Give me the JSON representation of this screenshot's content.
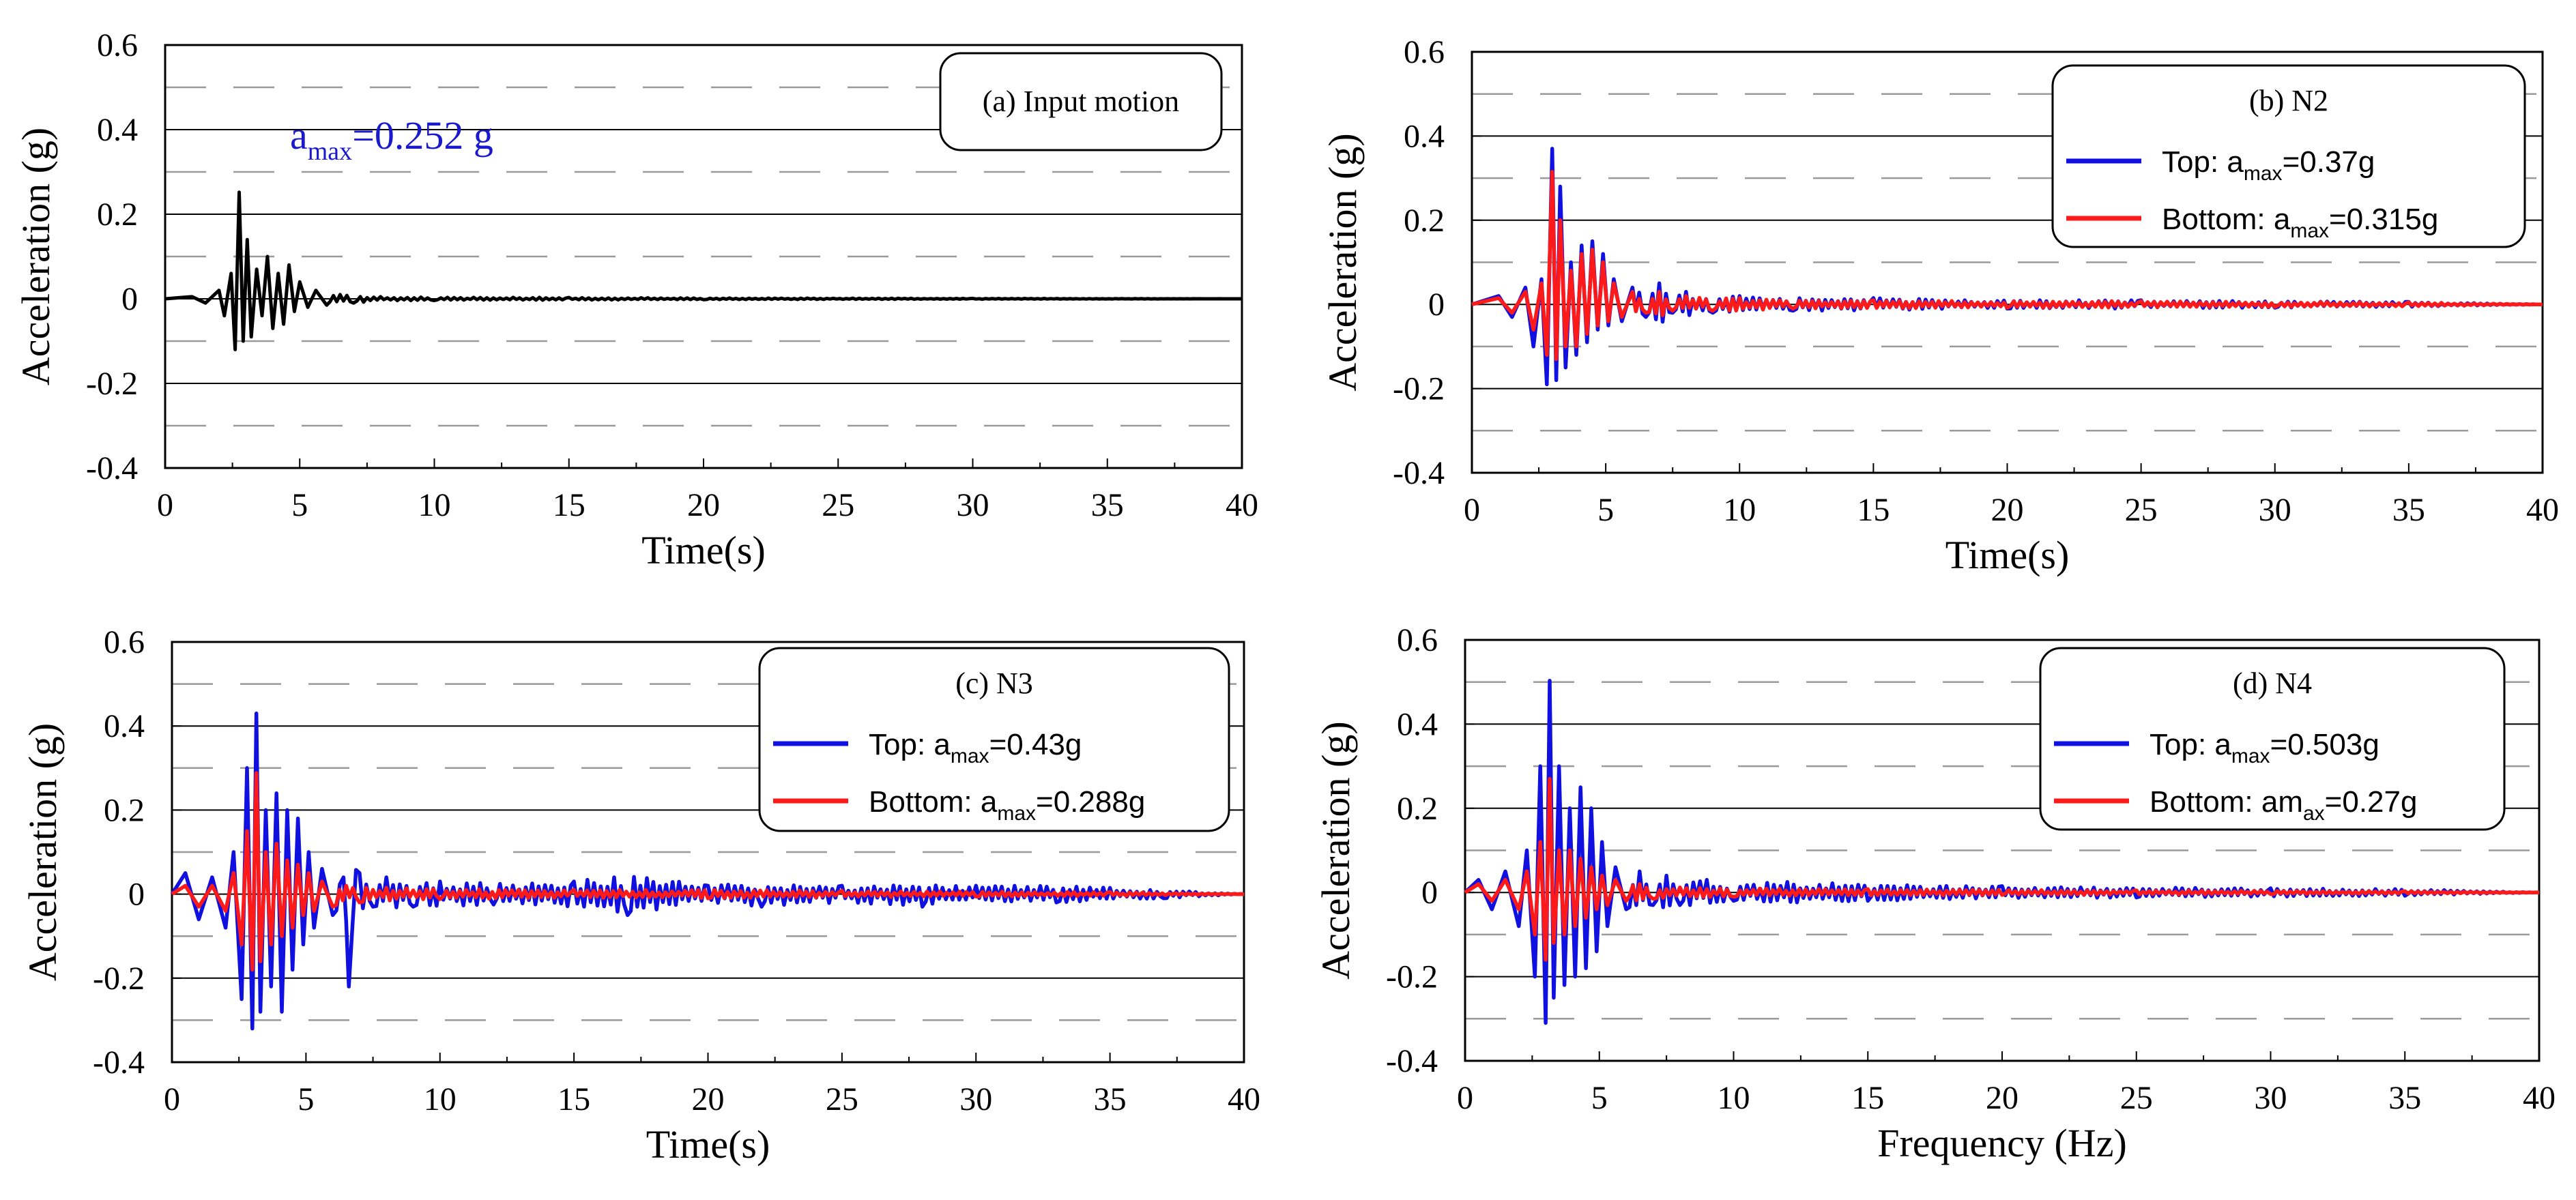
{
  "colors": {
    "top": "#1010e0",
    "bottom": "#ff1a1a",
    "input": "#000000",
    "annotation": "#1a1acc"
  },
  "chart_data": [
    {
      "type": "line",
      "panel": "a",
      "legend_title": "(a) Input motion",
      "annotation": {
        "base": "a",
        "subscript": "max",
        "text": "=0.252 g"
      },
      "xlabel": "Time(s)",
      "ylabel": "Acceleration (g)",
      "xlim": [
        0,
        40
      ],
      "ylim": [
        -0.4,
        0.6
      ],
      "xticks": [
        "0",
        "5",
        "10",
        "15",
        "20",
        "25",
        "30",
        "35",
        "40"
      ],
      "yticks": [
        "-0.4",
        "-0.2",
        "0",
        "0.2",
        "0.4",
        "0.6"
      ],
      "series": [
        {
          "name": "Input motion",
          "color": "#000000",
          "peak": 0.252,
          "x": [
            0,
            1.0,
            1.5,
            2.0,
            2.2,
            2.45,
            2.6,
            2.75,
            2.9,
            3.05,
            3.2,
            3.4,
            3.6,
            3.8,
            4.0,
            4.2,
            4.4,
            4.6,
            4.8,
            5.0,
            5.3,
            5.6,
            6.0,
            6.5,
            7.0,
            8.0,
            10.0,
            15.0,
            20.0,
            30.0,
            40.0
          ],
          "y": [
            0,
            0.005,
            -0.01,
            0.02,
            -0.04,
            0.06,
            -0.12,
            0.252,
            -0.1,
            0.14,
            -0.09,
            0.07,
            -0.04,
            0.1,
            -0.07,
            0.06,
            -0.06,
            0.08,
            -0.03,
            0.04,
            -0.02,
            0.02,
            -0.015,
            0.01,
            -0.01,
            0.005,
            -0.004,
            0.003,
            -0.002,
            0.001,
            0
          ]
        }
      ]
    },
    {
      "type": "line",
      "panel": "b",
      "legend_title": "(b) N2",
      "xlabel": "Time(s)",
      "ylabel": "Acceleration (g)",
      "xlim": [
        0,
        40
      ],
      "ylim": [
        -0.4,
        0.6
      ],
      "xticks": [
        "0",
        "5",
        "10",
        "15",
        "20",
        "25",
        "30",
        "35",
        "40"
      ],
      "yticks": [
        "-0.4",
        "-0.2",
        "0",
        "0.2",
        "0.4",
        "0.6"
      ],
      "series": [
        {
          "name": "Top",
          "label": "Top: ",
          "sub": "max",
          "value": "=0.37g",
          "color": "#1010e0",
          "peak": 0.37,
          "x": [
            0,
            1.0,
            1.5,
            2.0,
            2.3,
            2.6,
            2.8,
            3.0,
            3.15,
            3.3,
            3.5,
            3.7,
            3.9,
            4.1,
            4.3,
            4.5,
            4.7,
            4.9,
            5.1,
            5.3,
            5.6,
            6.0,
            6.5,
            7.0,
            7.5,
            8.0,
            9.0,
            10.0,
            12.0,
            15.0,
            20.0,
            25.0,
            30.0,
            35.0,
            40.0
          ],
          "y": [
            0,
            0.02,
            -0.03,
            0.04,
            -0.1,
            0.06,
            -0.19,
            0.37,
            -0.18,
            0.28,
            -0.15,
            0.1,
            -0.12,
            0.14,
            -0.09,
            0.15,
            -0.06,
            0.12,
            -0.05,
            0.06,
            -0.04,
            0.04,
            -0.03,
            0.05,
            -0.02,
            0.03,
            -0.02,
            0.02,
            -0.015,
            0.015,
            -0.01,
            0.01,
            -0.008,
            0.006,
            0
          ]
        },
        {
          "name": "Bottom",
          "label": "Bottom: ",
          "sub": "max",
          "value": "=0.315g",
          "color": "#ff1a1a",
          "peak": 0.315,
          "x": [
            0,
            1.0,
            1.5,
            2.0,
            2.3,
            2.6,
            2.8,
            3.0,
            3.15,
            3.3,
            3.5,
            3.7,
            3.9,
            4.1,
            4.3,
            4.5,
            4.7,
            4.9,
            5.1,
            5.3,
            5.6,
            6.0,
            6.5,
            7.0,
            7.5,
            8.0,
            9.0,
            10.0,
            12.0,
            15.0,
            20.0,
            25.0,
            30.0,
            35.0,
            40.0
          ],
          "y": [
            0,
            0.015,
            -0.02,
            0.03,
            -0.06,
            0.05,
            -0.12,
            0.315,
            -0.13,
            0.2,
            -0.1,
            0.08,
            -0.1,
            0.12,
            -0.07,
            0.13,
            -0.05,
            0.1,
            -0.04,
            0.05,
            -0.03,
            0.03,
            -0.02,
            0.03,
            -0.015,
            0.02,
            -0.015,
            0.015,
            -0.01,
            0.01,
            -0.008,
            0.008,
            -0.006,
            0.005,
            0
          ]
        }
      ]
    },
    {
      "type": "line",
      "panel": "c",
      "legend_title": "(c) N3",
      "xlabel": "Time(s)",
      "ylabel": "Acceleration (g)",
      "xlim": [
        0,
        40
      ],
      "ylim": [
        -0.4,
        0.6
      ],
      "xticks": [
        "0",
        "5",
        "10",
        "15",
        "20",
        "25",
        "30",
        "35",
        "40"
      ],
      "yticks": [
        "-0.4",
        "-0.2",
        "0",
        "0.2",
        "0.4",
        "0.6"
      ],
      "series": [
        {
          "name": "Top",
          "label": "Top: ",
          "sub": "max",
          "value": "=0.43g",
          "color": "#1010e0",
          "peak": 0.43,
          "x": [
            0,
            0.5,
            1.0,
            1.5,
            2.0,
            2.3,
            2.6,
            2.8,
            3.0,
            3.15,
            3.3,
            3.5,
            3.7,
            3.9,
            4.1,
            4.3,
            4.5,
            4.7,
            4.9,
            5.1,
            5.3,
            5.6,
            6.0,
            6.4,
            6.6,
            7.0,
            7.5,
            8.0,
            9.0,
            10.0,
            12.0,
            15.0,
            17.0,
            20.0,
            22.0,
            25.0,
            28.0,
            30.0,
            33.0,
            35.0,
            37.0,
            40.0
          ],
          "y": [
            0,
            0.05,
            -0.06,
            0.04,
            -0.08,
            0.1,
            -0.25,
            0.3,
            -0.32,
            0.43,
            -0.28,
            0.2,
            -0.22,
            0.24,
            -0.28,
            0.2,
            -0.18,
            0.18,
            -0.12,
            0.1,
            -0.08,
            0.06,
            -0.05,
            0.04,
            -0.22,
            0.05,
            -0.03,
            0.04,
            -0.03,
            0.03,
            -0.025,
            0.03,
            -0.05,
            0.02,
            -0.03,
            0.02,
            -0.03,
            0.02,
            -0.02,
            0.015,
            -0.01,
            0
          ]
        },
        {
          "name": "Bottom",
          "label": "Bottom: ",
          "sub": "max",
          "value": "=0.288g",
          "color": "#ff1a1a",
          "peak": 0.288,
          "x": [
            0,
            0.5,
            1.0,
            1.5,
            2.0,
            2.3,
            2.6,
            2.8,
            3.0,
            3.15,
            3.3,
            3.5,
            3.7,
            3.9,
            4.1,
            4.3,
            4.5,
            4.7,
            4.9,
            5.1,
            5.3,
            5.6,
            6.0,
            6.5,
            7.0,
            8.0,
            10.0,
            15.0,
            20.0,
            25.0,
            30.0,
            35.0,
            40.0
          ],
          "y": [
            0,
            0.02,
            -0.03,
            0.02,
            -0.04,
            0.05,
            -0.12,
            0.15,
            -0.18,
            0.288,
            -0.16,
            0.1,
            -0.12,
            0.12,
            -0.1,
            0.08,
            -0.08,
            0.07,
            -0.05,
            0.05,
            -0.04,
            0.03,
            -0.03,
            0.02,
            -0.02,
            0.015,
            -0.012,
            0.01,
            -0.01,
            0.008,
            -0.006,
            0.005,
            0
          ]
        }
      ]
    },
    {
      "type": "line",
      "panel": "d",
      "legend_title": "(d) N4",
      "xlabel": "Frequency (Hz)",
      "ylabel": "Acceleration (g)",
      "xlim": [
        0,
        40
      ],
      "ylim": [
        -0.4,
        0.6
      ],
      "xticks": [
        "0",
        "5",
        "10",
        "15",
        "20",
        "25",
        "30",
        "35",
        "40"
      ],
      "yticks": [
        "-0.4",
        "-0.2",
        "0",
        "0.2",
        "0.4",
        "0.6"
      ],
      "series": [
        {
          "name": "Top",
          "label": "Top: ",
          "sub": "max",
          "value": "=0.503g",
          "color": "#1010e0",
          "peak": 0.503,
          "x": [
            0,
            0.5,
            1.0,
            1.5,
            2.0,
            2.3,
            2.6,
            2.8,
            3.0,
            3.15,
            3.3,
            3.5,
            3.7,
            3.9,
            4.1,
            4.3,
            4.5,
            4.7,
            4.9,
            5.1,
            5.3,
            5.6,
            6.0,
            6.5,
            7.0,
            7.5,
            8.0,
            9.0,
            10.0,
            12.0,
            15.0,
            20.0,
            25.0,
            30.0,
            35.0,
            40.0
          ],
          "y": [
            0,
            0.03,
            -0.04,
            0.05,
            -0.08,
            0.1,
            -0.2,
            0.3,
            -0.31,
            0.503,
            -0.25,
            0.3,
            -0.22,
            0.2,
            -0.2,
            0.25,
            -0.18,
            0.2,
            -0.14,
            0.12,
            -0.08,
            0.06,
            -0.04,
            0.05,
            -0.03,
            0.04,
            -0.03,
            0.03,
            -0.02,
            0.025,
            -0.02,
            0.015,
            -0.012,
            0.01,
            -0.008,
            0
          ]
        },
        {
          "name": "Bottom",
          "label": "Bottom: ",
          "sub": "max",
          "value": "=0.27g",
          "display": "am",
          "display_sub": "ax",
          "color": "#ff1a1a",
          "peak": 0.27,
          "x": [
            0,
            0.5,
            1.0,
            1.5,
            2.0,
            2.3,
            2.6,
            2.8,
            3.0,
            3.15,
            3.3,
            3.5,
            3.7,
            3.9,
            4.1,
            4.3,
            4.5,
            4.7,
            4.9,
            5.1,
            5.3,
            5.6,
            6.0,
            6.5,
            7.0,
            8.0,
            10.0,
            15.0,
            20.0,
            25.0,
            30.0,
            35.0,
            40.0
          ],
          "y": [
            0,
            0.02,
            -0.02,
            0.03,
            -0.04,
            0.05,
            -0.1,
            0.12,
            -0.16,
            0.27,
            -0.12,
            0.1,
            -0.1,
            0.1,
            -0.08,
            0.08,
            -0.06,
            0.06,
            -0.04,
            0.04,
            -0.03,
            0.03,
            -0.02,
            0.02,
            -0.015,
            0.012,
            -0.01,
            0.008,
            -0.006,
            0.005,
            -0.004,
            0.003,
            0
          ]
        }
      ]
    }
  ]
}
